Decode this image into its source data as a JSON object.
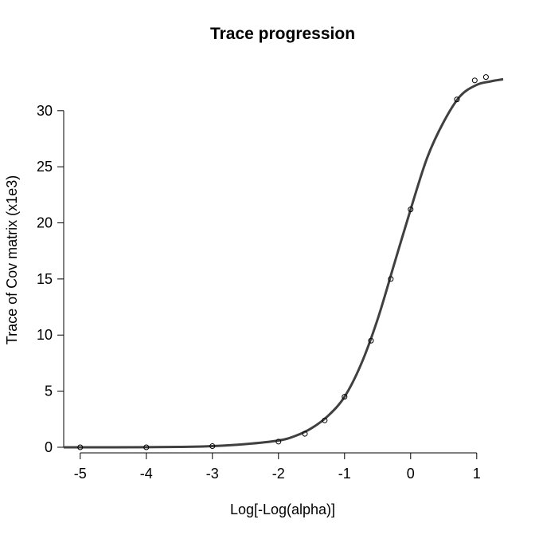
{
  "chart_data": {
    "type": "scatter",
    "title": "Trace progression",
    "xlabel": "Log[-Log(alpha)]",
    "ylabel": "Trace of Cov matrix (x1e3)",
    "xlim": [
      -5.25,
      1.4
    ],
    "ylim": [
      -0.5,
      32.9
    ],
    "xticks": [
      -5,
      -4,
      -3,
      -2,
      -1,
      0,
      1
    ],
    "yticks": [
      0,
      5,
      10,
      15,
      20,
      25,
      30
    ],
    "grid": false,
    "legend": "none",
    "points": {
      "x": [
        -5.0,
        -4.0,
        -3.0,
        -2.0,
        -1.6,
        -1.3,
        -1.0,
        -0.6,
        -0.3,
        0.0,
        0.7,
        0.97,
        1.14
      ],
      "y": [
        0.0,
        0.0,
        0.1,
        0.5,
        1.2,
        2.4,
        4.5,
        9.5,
        15.0,
        21.2,
        31.0,
        32.7,
        33.0
      ]
    },
    "fit_curve": {
      "x": [
        -5.25,
        -5.0,
        -4.5,
        -4.0,
        -3.5,
        -3.0,
        -2.5,
        -2.0,
        -1.75,
        -1.5,
        -1.25,
        -1.0,
        -0.75,
        -0.5,
        -0.25,
        0.0,
        0.25,
        0.5,
        0.75,
        1.0,
        1.2,
        1.4
      ],
      "y": [
        0.0,
        0.0,
        0.0,
        0.01,
        0.03,
        0.1,
        0.28,
        0.6,
        1.0,
        1.7,
        2.8,
        4.5,
        7.4,
        11.4,
        16.3,
        21.2,
        25.8,
        29.0,
        31.3,
        32.3,
        32.6,
        32.8
      ]
    }
  }
}
